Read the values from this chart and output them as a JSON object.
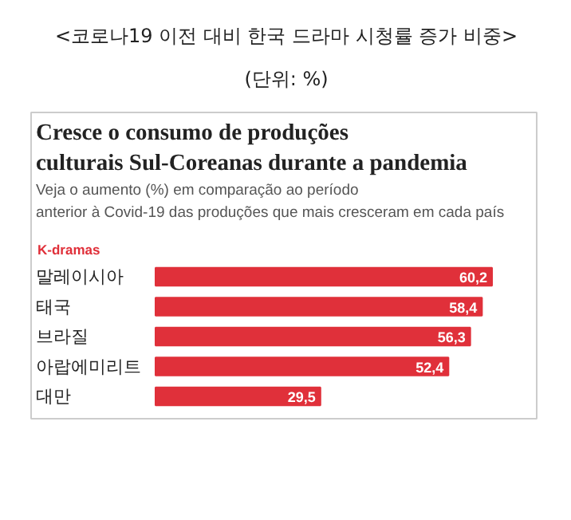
{
  "chart_data": {
    "type": "bar",
    "orientation": "horizontal",
    "title": "<코로나19 이전 대비 한국 드라마 시청률 증가 비중>",
    "subtitle": "(단위: %)",
    "annotations": [
      "Cresce o consumo de produções culturais Sul-Coreanas durante a pandemia",
      "Veja o aumento (%) em comparação ao período anterior à Covid-19 das produções que mais cresceram em cada país"
    ],
    "categories": [
      "말레이시아",
      "태국",
      "브라질",
      "아랍에미리트",
      "대만"
    ],
    "series": [
      {
        "name": "K-dramas",
        "color": "#e0303a",
        "values": [
          60.2,
          58.4,
          56.3,
          52.4,
          29.5
        ],
        "value_labels": [
          "60,2",
          "58,4",
          "56,3",
          "52,4",
          "29,5"
        ]
      }
    ],
    "grid": false
  }
}
